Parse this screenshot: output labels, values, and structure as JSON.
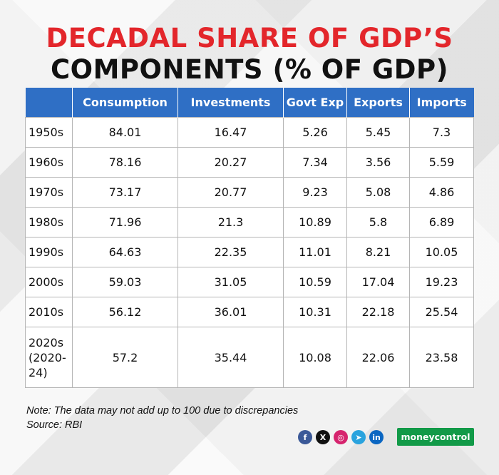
{
  "title_line1": "DECADAL SHARE OF GDP’S",
  "title_line2": "COMPONENTS (% OF GDP)",
  "chart_data": {
    "type": "table",
    "columns": [
      "",
      "Consumption",
      "Investments",
      "Govt Exp",
      "Exports",
      "Imports"
    ],
    "rows": [
      {
        "label": "1950s",
        "values": [
          "84.01",
          "16.47",
          "5.26",
          "5.45",
          "7.3"
        ]
      },
      {
        "label": "1960s",
        "values": [
          "78.16",
          "20.27",
          "7.34",
          "3.56",
          "5.59"
        ]
      },
      {
        "label": "1970s",
        "values": [
          "73.17",
          "20.77",
          "9.23",
          "5.08",
          "4.86"
        ]
      },
      {
        "label": "1980s",
        "values": [
          "71.96",
          "21.3",
          "10.89",
          "5.8",
          "6.89"
        ]
      },
      {
        "label": "1990s",
        "values": [
          "64.63",
          "22.35",
          "11.01",
          "8.21",
          "10.05"
        ]
      },
      {
        "label": "2000s",
        "values": [
          "59.03",
          "31.05",
          "10.59",
          "17.04",
          "19.23"
        ]
      },
      {
        "label": "2010s",
        "values": [
          "56.12",
          "36.01",
          "10.31",
          "22.18",
          "25.54"
        ]
      },
      {
        "label_lines": [
          "2020s",
          "(2020-",
          "24)"
        ],
        "values": [
          "57.2",
          "35.44",
          "10.08",
          "22.06",
          "23.58"
        ]
      }
    ]
  },
  "note": "Note: The data may not add up to 100 due to discrepancies",
  "source": "Source: RBI",
  "social_icons": [
    {
      "icon": "facebook-icon",
      "glyph": "f",
      "color": "#3b5998"
    },
    {
      "icon": "x-icon",
      "glyph": "X",
      "color": "#111111"
    },
    {
      "icon": "instagram-icon",
      "glyph": "◎",
      "color": "#d6246e"
    },
    {
      "icon": "telegram-icon",
      "glyph": "➤",
      "color": "#2aa3de"
    },
    {
      "icon": "linkedin-icon",
      "glyph": "in",
      "color": "#0a66c2"
    }
  ],
  "brand": "moneycontrol",
  "colors": {
    "title_red": "#e3262b",
    "header_blue": "#2f6fc5",
    "brand_green": "#129a48"
  }
}
